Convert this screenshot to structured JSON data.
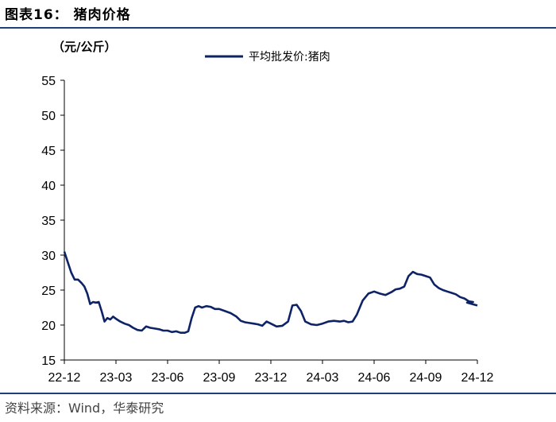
{
  "figure": {
    "title": "图表16：  猪肉价格",
    "source": "资料来源：Wind，华泰研究"
  },
  "chart_data": {
    "type": "line",
    "unit_label": "（元/公斤）",
    "ylim": [
      15,
      55
    ],
    "y_ticks": [
      15,
      20,
      25,
      30,
      35,
      40,
      45,
      50,
      55
    ],
    "x_ticks": [
      "22-12",
      "23-03",
      "23-06",
      "23-09",
      "23-12",
      "24-03",
      "24-06",
      "24-09",
      "24-12"
    ],
    "legend_position": "top",
    "color": "#0d2366",
    "series": [
      {
        "name": "平均批发价:猪肉",
        "points": [
          [
            "22-12",
            30.5
          ],
          [
            "22-12",
            29.0
          ],
          [
            "22-12",
            27.5
          ],
          [
            "22-12",
            26.5
          ],
          [
            "22-12",
            26.5
          ],
          [
            "23-01",
            26.0
          ],
          [
            "23-01",
            25.5
          ],
          [
            "23-01",
            24.5
          ],
          [
            "23-01",
            23.0
          ],
          [
            "23-01",
            23.3
          ],
          [
            "23-01",
            23.2
          ],
          [
            "23-02",
            23.3
          ],
          [
            "23-02",
            22.0
          ],
          [
            "23-02",
            20.5
          ],
          [
            "23-02",
            21.0
          ],
          [
            "23-02",
            20.8
          ],
          [
            "23-02",
            21.2
          ],
          [
            "23-03",
            20.9
          ],
          [
            "23-03",
            20.5
          ],
          [
            "23-03",
            20.2
          ],
          [
            "23-03",
            20.0
          ],
          [
            "23-04",
            19.6
          ],
          [
            "23-04",
            19.3
          ],
          [
            "23-04",
            19.2
          ],
          [
            "23-04",
            19.8
          ],
          [
            "23-05",
            19.6
          ],
          [
            "23-05",
            19.5
          ],
          [
            "23-05",
            19.4
          ],
          [
            "23-05",
            19.2
          ],
          [
            "23-06",
            19.2
          ],
          [
            "23-06",
            19.0
          ],
          [
            "23-06",
            19.1
          ],
          [
            "23-06",
            18.9
          ],
          [
            "23-07",
            18.9
          ],
          [
            "23-07",
            19.1
          ],
          [
            "23-07",
            21.0
          ],
          [
            "23-07",
            22.5
          ],
          [
            "23-07",
            22.7
          ],
          [
            "23-08",
            22.5
          ],
          [
            "23-08",
            22.7
          ],
          [
            "23-08",
            22.6
          ],
          [
            "23-08",
            22.3
          ],
          [
            "23-09",
            22.3
          ],
          [
            "23-09",
            22.0
          ],
          [
            "23-09",
            21.7
          ],
          [
            "23-10",
            21.2
          ],
          [
            "23-10",
            20.6
          ],
          [
            "23-10",
            20.4
          ],
          [
            "23-10",
            20.3
          ],
          [
            "23-11",
            20.2
          ],
          [
            "23-11",
            20.1
          ],
          [
            "23-11",
            19.9
          ],
          [
            "23-11",
            20.5
          ],
          [
            "23-12",
            20.2
          ],
          [
            "23-12",
            19.8
          ],
          [
            "23-12",
            19.9
          ],
          [
            "24-01",
            20.5
          ],
          [
            "24-01",
            22.8
          ],
          [
            "24-01",
            22.9
          ],
          [
            "24-01",
            22.0
          ],
          [
            "24-02",
            20.5
          ],
          [
            "24-02",
            20.1
          ],
          [
            "24-02",
            20.0
          ],
          [
            "24-03",
            20.2
          ],
          [
            "24-03",
            20.5
          ],
          [
            "24-03",
            20.6
          ],
          [
            "24-04",
            20.5
          ],
          [
            "24-04",
            20.6
          ],
          [
            "24-04",
            20.4
          ],
          [
            "24-04",
            20.5
          ],
          [
            "24-05",
            21.5
          ],
          [
            "24-05",
            23.5
          ],
          [
            "24-05",
            24.5
          ],
          [
            "24-06",
            24.8
          ],
          [
            "24-06",
            24.5
          ],
          [
            "24-06",
            24.3
          ],
          [
            "24-07",
            24.7
          ],
          [
            "24-07",
            25.1
          ],
          [
            "24-07",
            25.2
          ],
          [
            "24-07",
            25.5
          ],
          [
            "24-08",
            27.0
          ],
          [
            "24-08",
            27.6
          ],
          [
            "24-08",
            27.3
          ],
          [
            "24-08",
            27.2
          ],
          [
            "24-09",
            27.0
          ],
          [
            "24-09",
            26.8
          ],
          [
            "24-09",
            25.8
          ],
          [
            "24-09",
            25.3
          ],
          [
            "24-10",
            25.0
          ],
          [
            "24-10",
            24.8
          ],
          [
            "24-10",
            24.6
          ],
          [
            "24-10",
            24.4
          ],
          [
            "24-11",
            24.0
          ],
          [
            "24-11",
            23.8
          ],
          [
            "24-11",
            23.4
          ],
          [
            "24-11",
            23.3
          ],
          [
            "24-12",
            23.2
          ],
          [
            "24-12",
            23.0
          ],
          [
            "24-12",
            22.8
          ]
        ]
      }
    ]
  }
}
